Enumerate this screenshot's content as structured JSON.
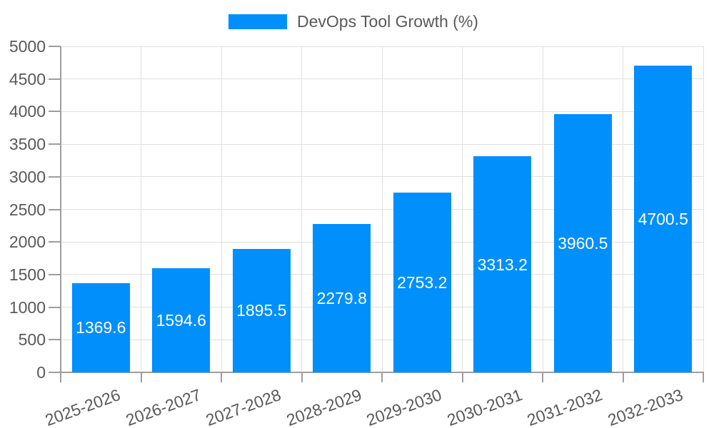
{
  "chart_data": {
    "type": "bar",
    "title": "DevOps Tool Growth (%)",
    "legend_label": "DevOps Tool Growth (%)",
    "legend_position": "top",
    "categories": [
      "2025-2026",
      "2026-2027",
      "2027-2028",
      "2028-2029",
      "2029-2030",
      "2030-2031",
      "2031-2032",
      "2032-2033"
    ],
    "values": [
      1369.6,
      1594.6,
      1895.5,
      2279.8,
      2753.2,
      3313.2,
      3960.5,
      4700.5
    ],
    "value_labels": [
      "1369.6",
      "1594.6",
      "1895.5",
      "2279.8",
      "2753.2",
      "3313.2",
      "3960.5",
      "4700.5"
    ],
    "xlabel": "",
    "ylabel": "",
    "ylim": [
      0,
      5000
    ],
    "ytick_step": 500,
    "ytick_labels": [
      "0",
      "500",
      "1000",
      "1500",
      "2000",
      "2500",
      "3000",
      "3500",
      "4000",
      "4500",
      "5000"
    ],
    "grid": true,
    "colors": {
      "bar": "#008FFB",
      "bar_value_text": "#ffffff",
      "axis_text": "#595959",
      "grid_line": "#e0e0e0",
      "axis_line": "#9e9e9e",
      "background": "#ffffff"
    }
  }
}
